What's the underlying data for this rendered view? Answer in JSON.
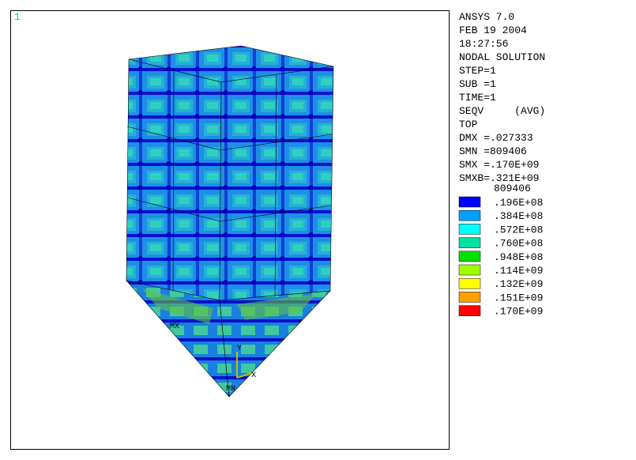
{
  "viewport": {
    "window_number": "1"
  },
  "info": {
    "lines": [
      "ANSYS 7.0",
      "FEB 19 2004",
      "18:27:56",
      "NODAL SOLUTION",
      "STEP=1",
      "SUB =1",
      "TIME=1",
      "SEQV     (AVG)",
      "TOP",
      "DMX =.027333",
      "SMN =809406",
      "SMX =.170E+09",
      "SMXB=.321E+09"
    ]
  },
  "legend": {
    "min_label": "809406",
    "items": [
      {
        "color": "#0000ff",
        "label": ".196E+08"
      },
      {
        "color": "#00a0ff",
        "label": ".384E+08"
      },
      {
        "color": "#00ffff",
        "label": ".572E+08"
      },
      {
        "color": "#00e0a0",
        "label": ".760E+08"
      },
      {
        "color": "#00e000",
        "label": ".948E+08"
      },
      {
        "color": "#a0ff00",
        "label": ".114E+09"
      },
      {
        "color": "#ffff00",
        "label": ".132E+09"
      },
      {
        "color": "#ffa000",
        "label": ".151E+09"
      },
      {
        "color": "#ff0000",
        "label": ".170E+09"
      }
    ]
  },
  "model_labels": {
    "max": "MX",
    "min": "MN",
    "axis_x": "X",
    "axis_y": "Y"
  }
}
